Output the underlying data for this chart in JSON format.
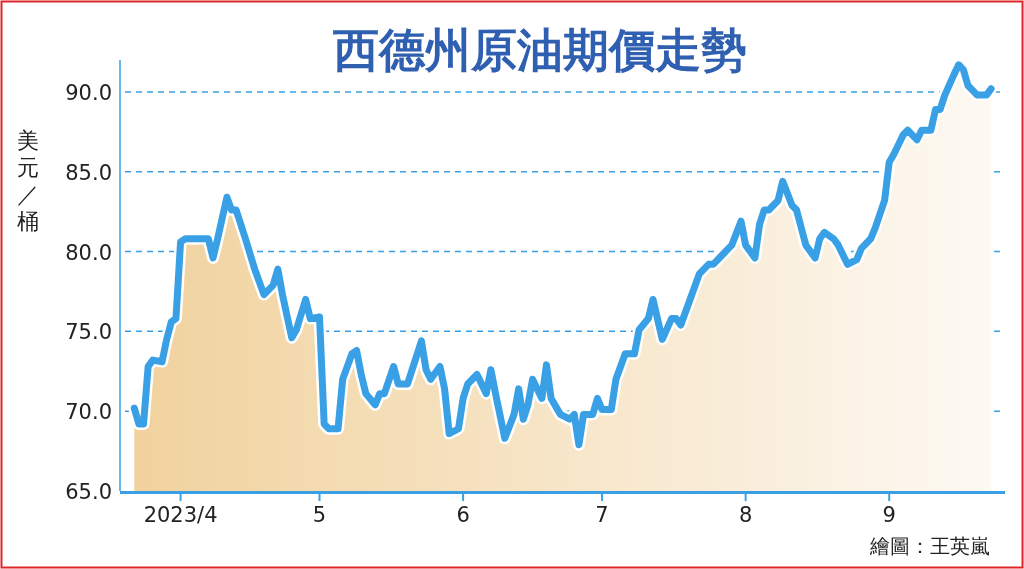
{
  "chart_data": {
    "type": "area",
    "title": "西德州原油期價走勢",
    "ylabel": "美元／桶",
    "grid": "y",
    "xlim": [
      "2023-03-20",
      "2023-09-26"
    ],
    "ylim": [
      65,
      92
    ],
    "xticks": [
      {
        "value": "2023-04-01",
        "label": "2023/4"
      },
      {
        "value": "2023-05-01",
        "label": "5"
      },
      {
        "value": "2023-06-01",
        "label": "6"
      },
      {
        "value": "2023-07-01",
        "label": "7"
      },
      {
        "value": "2023-08-01",
        "label": "8"
      },
      {
        "value": "2023-09-01",
        "label": "9"
      }
    ],
    "yticks": [
      {
        "value": 65,
        "label": "65.0"
      },
      {
        "value": 70,
        "label": "70.0"
      },
      {
        "value": 75,
        "label": "75.0"
      },
      {
        "value": 80,
        "label": "80.0"
      },
      {
        "value": 85,
        "label": "85.0"
      },
      {
        "value": 90,
        "label": "90.0"
      }
    ],
    "annotations": [
      "繪圖：王英嵐"
    ],
    "series": [
      {
        "color": "#3aa0e6",
        "x": [
          "2023-03-22",
          "2023-03-23",
          "2023-03-24",
          "2023-03-25",
          "2023-03-26",
          "2023-03-28",
          "2023-03-29",
          "2023-03-30",
          "2023-03-31",
          "2023-04-01",
          "2023-04-02",
          "2023-04-07",
          "2023-04-08",
          "2023-04-09",
          "2023-04-11",
          "2023-04-12",
          "2023-04-13",
          "2023-04-15",
          "2023-04-17",
          "2023-04-19",
          "2023-04-21",
          "2023-04-22",
          "2023-04-23",
          "2023-04-25",
          "2023-04-26",
          "2023-04-28",
          "2023-04-29",
          "2023-05-01",
          "2023-05-02",
          "2023-05-03",
          "2023-05-05",
          "2023-05-06",
          "2023-05-08",
          "2023-05-09",
          "2023-05-10",
          "2023-05-11",
          "2023-05-13",
          "2023-05-14",
          "2023-05-15",
          "2023-05-17",
          "2023-05-18",
          "2023-05-20",
          "2023-05-21",
          "2023-05-23",
          "2023-05-24",
          "2023-05-25",
          "2023-05-27",
          "2023-05-28",
          "2023-05-29",
          "2023-05-31",
          "2023-06-01",
          "2023-06-02",
          "2023-06-04",
          "2023-06-06",
          "2023-06-07",
          "2023-06-08",
          "2023-06-10",
          "2023-06-12",
          "2023-06-13",
          "2023-06-14",
          "2023-06-15",
          "2023-06-16",
          "2023-06-18",
          "2023-06-19",
          "2023-06-20",
          "2023-06-22",
          "2023-06-24",
          "2023-06-25",
          "2023-06-26",
          "2023-06-27",
          "2023-06-29",
          "2023-06-30",
          "2023-07-01",
          "2023-07-03",
          "2023-07-04",
          "2023-07-06",
          "2023-07-08",
          "2023-07-09",
          "2023-07-11",
          "2023-07-12",
          "2023-07-14",
          "2023-07-16",
          "2023-07-17",
          "2023-07-18",
          "2023-07-20",
          "2023-07-22",
          "2023-07-24",
          "2023-07-25",
          "2023-07-27",
          "2023-07-29",
          "2023-07-31",
          "2023-08-01",
          "2023-08-03",
          "2023-08-04",
          "2023-08-05",
          "2023-08-06",
          "2023-08-08",
          "2023-08-09",
          "2023-08-11",
          "2023-08-12",
          "2023-08-14",
          "2023-08-16",
          "2023-08-17",
          "2023-08-18",
          "2023-08-20",
          "2023-08-21",
          "2023-08-23",
          "2023-08-25",
          "2023-08-26",
          "2023-08-28",
          "2023-08-29",
          "2023-08-31",
          "2023-09-01",
          "2023-09-02",
          "2023-09-04",
          "2023-09-05",
          "2023-09-07",
          "2023-09-08",
          "2023-09-10",
          "2023-09-11",
          "2023-09-12",
          "2023-09-13",
          "2023-09-15",
          "2023-09-16",
          "2023-09-17",
          "2023-09-18",
          "2023-09-20",
          "2023-09-22",
          "2023-09-23"
        ],
        "values": [
          70.2,
          69.2,
          69.2,
          72.8,
          73.2,
          73.1,
          74.5,
          75.6,
          75.8,
          80.6,
          80.8,
          80.8,
          79.6,
          80.8,
          83.4,
          82.6,
          82.6,
          80.8,
          78.9,
          77.3,
          77.9,
          78.9,
          77.3,
          74.6,
          75.1,
          77.0,
          75.8,
          75.9,
          69.2,
          68.9,
          68.9,
          72.0,
          73.6,
          73.8,
          72.3,
          71.1,
          70.4,
          71.1,
          71.1,
          72.8,
          71.7,
          71.7,
          72.6,
          74.4,
          72.6,
          72.0,
          72.8,
          71.4,
          68.6,
          68.9,
          70.8,
          71.7,
          72.3,
          71.1,
          72.6,
          71.1,
          68.3,
          69.8,
          71.4,
          69.5,
          70.4,
          72.0,
          70.8,
          72.9,
          70.8,
          69.8,
          69.5,
          69.8,
          67.9,
          69.8,
          69.8,
          70.8,
          70.1,
          70.1,
          72.0,
          73.6,
          73.6,
          75.1,
          75.8,
          77.0,
          74.5,
          75.8,
          75.8,
          75.4,
          77.0,
          78.6,
          79.2,
          79.2,
          79.8,
          80.4,
          81.9,
          80.4,
          79.6,
          81.7,
          82.6,
          82.6,
          83.2,
          84.4,
          82.9,
          82.6,
          80.4,
          79.6,
          80.8,
          81.2,
          80.8,
          80.4,
          79.2,
          79.5,
          80.2,
          80.8,
          81.5,
          83.2,
          85.6,
          86.1,
          87.3,
          87.6,
          87.0,
          87.6,
          87.6,
          88.9,
          88.9,
          89.8,
          91.1,
          91.7,
          91.4,
          90.4,
          89.8,
          89.8,
          90.2
        ]
      }
    ]
  }
}
